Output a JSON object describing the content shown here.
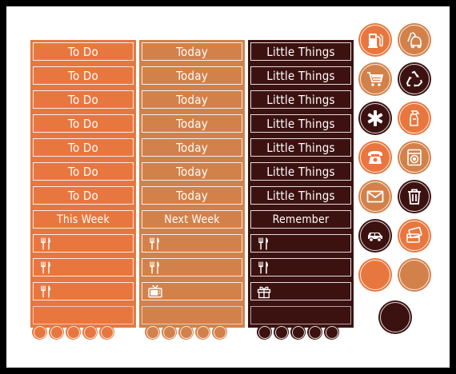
{
  "colors": {
    "frame": "#000000",
    "paper": "#ffffff",
    "orange": "#e8773f",
    "tan": "#d3814a",
    "brown": "#3c1210"
  },
  "columns": [
    {
      "color": "orange",
      "rows": [
        {
          "label": "To Do"
        },
        {
          "label": "To Do"
        },
        {
          "label": "To Do"
        },
        {
          "label": "To Do"
        },
        {
          "label": "To Do"
        },
        {
          "label": "To Do"
        },
        {
          "label": "To Do"
        },
        {
          "label": "This Week"
        },
        {
          "icon": "fork-knife-icon"
        },
        {
          "icon": "fork-knife-icon"
        },
        {
          "icon": "fork-knife-icon"
        },
        {
          "label": ""
        }
      ]
    },
    {
      "color": "tan",
      "rows": [
        {
          "label": "Today"
        },
        {
          "label": "Today"
        },
        {
          "label": "Today"
        },
        {
          "label": "Today"
        },
        {
          "label": "Today"
        },
        {
          "label": "Today"
        },
        {
          "label": "Today"
        },
        {
          "label": "Next Week"
        },
        {
          "icon": "fork-knife-icon"
        },
        {
          "icon": "fork-knife-icon"
        },
        {
          "icon": "tv-icon"
        },
        {
          "label": ""
        }
      ]
    },
    {
      "color": "brown",
      "rows": [
        {
          "label": "Little Things"
        },
        {
          "label": "Little Things"
        },
        {
          "label": "Little Things"
        },
        {
          "label": "Little Things"
        },
        {
          "label": "Little Things"
        },
        {
          "label": "Little Things"
        },
        {
          "label": "Little Things"
        },
        {
          "label": "Remember"
        },
        {
          "icon": "fork-knife-icon"
        },
        {
          "icon": "fork-knife-icon"
        },
        {
          "icon": "gift-icon"
        },
        {
          "label": ""
        }
      ]
    }
  ],
  "icon_circles": [
    {
      "icon": "gas-pump-icon",
      "color": "orange"
    },
    {
      "icon": "vacuum-icon",
      "color": "tan"
    },
    {
      "icon": "shopping-cart-icon",
      "color": "tan"
    },
    {
      "icon": "recycle-icon",
      "color": "brown"
    },
    {
      "icon": "medical-star-icon",
      "color": "brown"
    },
    {
      "icon": "spray-bottle-icon",
      "color": "orange"
    },
    {
      "icon": "telephone-icon",
      "color": "orange"
    },
    {
      "icon": "washing-machine-icon",
      "color": "tan"
    },
    {
      "icon": "envelope-icon",
      "color": "tan"
    },
    {
      "icon": "trash-can-icon",
      "color": "brown"
    },
    {
      "icon": "car-icon",
      "color": "brown"
    },
    {
      "icon": "credit-card-icon",
      "color": "orange"
    },
    {
      "icon": "",
      "color": "orange"
    },
    {
      "icon": "",
      "color": "tan"
    },
    {
      "icon": "",
      "color": "brown"
    }
  ],
  "dot_rows": [
    {
      "color": "orange",
      "count": 5
    },
    {
      "color": "tan",
      "count": 5
    },
    {
      "color": "brown",
      "count": 5
    }
  ]
}
